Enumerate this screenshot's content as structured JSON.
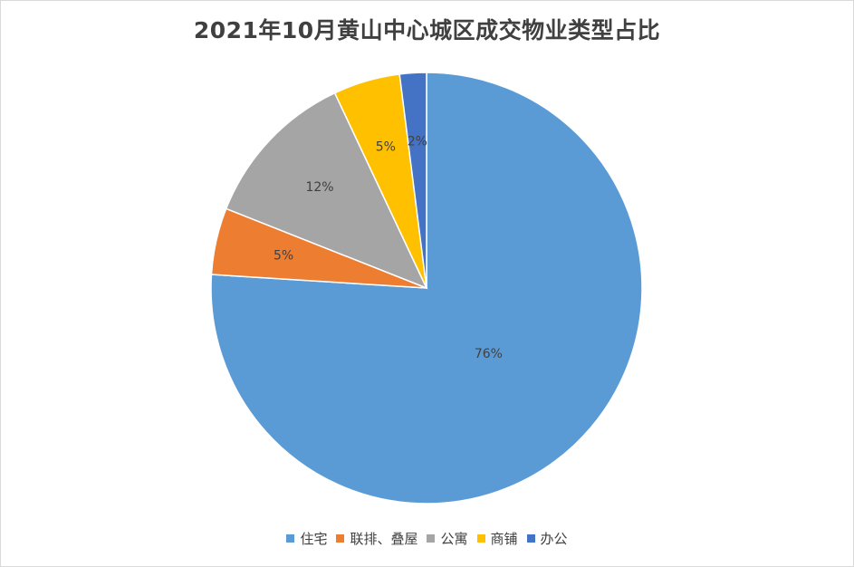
{
  "chart_data": {
    "type": "pie",
    "title": "2021年10月黄山中心城区成交物业类型占比",
    "slices": [
      {
        "label": "住宅",
        "value": 76,
        "data_label": "76%",
        "color": "#5b9bd5"
      },
      {
        "label": "联排、叠屋",
        "value": 5,
        "data_label": "5%",
        "color": "#ed7d31"
      },
      {
        "label": "公寓",
        "value": 12,
        "data_label": "12%",
        "color": "#a5a5a5"
      },
      {
        "label": "商铺",
        "value": 5,
        "data_label": "5%",
        "color": "#ffc000"
      },
      {
        "label": "办公",
        "value": 2,
        "data_label": "2%",
        "color": "#4472c4"
      }
    ],
    "start_angle_deg": 0,
    "direction": "clockwise",
    "legend_position": "bottom"
  }
}
